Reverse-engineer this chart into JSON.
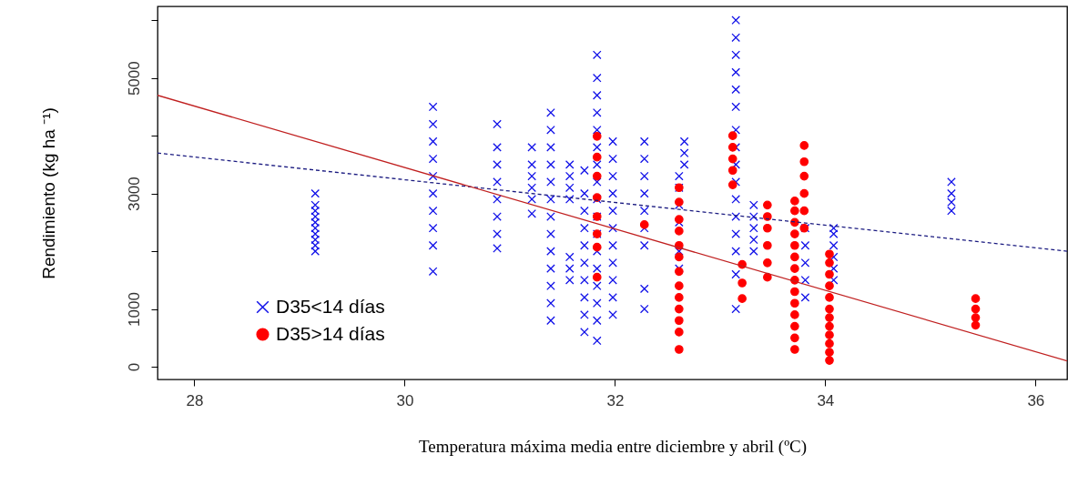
{
  "chart_data": {
    "type": "scatter",
    "xlabel": "Temperatura máxima media entre diciembre y abril (ºC)",
    "ylabel": "Rendimiento (kg ha ⁻¹)",
    "xlim": [
      27.65,
      36.3
    ],
    "xticks": [
      28,
      30,
      32,
      34,
      36
    ],
    "ylim": [
      -220,
      6240
    ],
    "yticks": [
      0,
      1000,
      {
        "value": 2000,
        "label": null
      },
      3000,
      {
        "value": 4000,
        "label": null
      },
      5000,
      {
        "value": 6000,
        "label": null
      }
    ],
    "grid": false,
    "legend": "bottom left",
    "series": [
      {
        "name": "D35<14 días",
        "marker": "cross",
        "color": "#1010e8",
        "x": [
          29.15,
          29.15,
          29.15,
          29.15,
          29.15,
          29.15,
          29.15,
          29.15,
          29.15,
          29.15,
          30.27,
          30.27,
          30.27,
          30.27,
          30.27,
          30.27,
          30.27,
          30.27,
          30.27,
          30.27,
          30.88,
          30.88,
          30.88,
          30.88,
          30.88,
          30.88,
          30.88,
          30.88,
          31.21,
          31.21,
          31.21,
          31.21,
          31.21,
          31.21,
          31.39,
          31.39,
          31.39,
          31.39,
          31.39,
          31.39,
          31.39,
          31.39,
          31.39,
          31.39,
          31.39,
          31.39,
          31.39,
          31.57,
          31.57,
          31.57,
          31.57,
          31.57,
          31.57,
          31.57,
          31.71,
          31.71,
          31.71,
          31.71,
          31.71,
          31.71,
          31.71,
          31.71,
          31.71,
          31.71,
          31.83,
          31.83,
          31.83,
          31.83,
          31.83,
          31.83,
          31.83,
          31.83,
          31.83,
          31.83,
          31.83,
          31.83,
          31.83,
          31.83,
          31.83,
          31.83,
          31.83,
          31.98,
          31.98,
          31.98,
          31.98,
          31.98,
          31.98,
          31.98,
          31.98,
          31.98,
          31.98,
          31.98,
          32.28,
          32.28,
          32.28,
          32.28,
          32.28,
          32.28,
          32.28,
          32.28,
          32.28,
          32.61,
          32.61,
          32.61,
          32.61,
          32.61,
          32.61,
          32.66,
          32.66,
          32.66,
          33.15,
          33.15,
          33.15,
          33.15,
          33.15,
          33.15,
          33.15,
          33.15,
          33.15,
          33.15,
          33.15,
          33.15,
          33.15,
          33.15,
          33.15,
          33.15,
          33.32,
          33.32,
          33.32,
          33.32,
          33.32,
          33.81,
          33.81,
          33.81,
          33.81,
          33.81,
          34.08,
          34.08,
          34.08,
          34.08,
          34.08,
          34.08,
          35.2,
          35.2,
          35.2,
          35.2
        ],
        "values": [
          2000,
          2100,
          2200,
          2300,
          2400,
          2500,
          2600,
          2700,
          2800,
          3000,
          1650,
          2100,
          2400,
          2700,
          3000,
          3300,
          3600,
          3900,
          4200,
          4500,
          2050,
          2300,
          2600,
          2900,
          3200,
          3500,
          3800,
          4200,
          2650,
          2900,
          3100,
          3300,
          3500,
          3800,
          800,
          1100,
          1400,
          1700,
          2000,
          2300,
          2600,
          2900,
          3200,
          3500,
          3800,
          4100,
          4400,
          1500,
          1700,
          1900,
          2900,
          3100,
          3300,
          3500,
          600,
          900,
          1200,
          1500,
          1800,
          2100,
          2400,
          2700,
          3000,
          3400,
          450,
          800,
          1100,
          1400,
          1700,
          2000,
          2300,
          2600,
          2900,
          3200,
          3500,
          3800,
          4100,
          4400,
          4700,
          5000,
          5400,
          900,
          1200,
          1500,
          1800,
          2100,
          2400,
          2700,
          3000,
          3300,
          3600,
          3900,
          1000,
          1350,
          2100,
          2400,
          2700,
          3000,
          3300,
          3600,
          3900,
          1700,
          2000,
          2500,
          2800,
          3100,
          3300,
          3500,
          3700,
          3900,
          1000,
          1600,
          2000,
          2300,
          2600,
          2900,
          3200,
          3500,
          3800,
          4100,
          4500,
          4800,
          5100,
          5400,
          5700,
          6000,
          2000,
          2200,
          2400,
          2600,
          2800,
          1200,
          1500,
          1800,
          2100,
          2400,
          1500,
          1700,
          1900,
          2100,
          2300,
          2400,
          2700,
          2850,
          3000,
          3200
        ]
      },
      {
        "name": "D35>14 días",
        "marker": "circle",
        "color": "#ff0000",
        "x": [
          31.83,
          31.83,
          31.83,
          31.83,
          31.83,
          31.83,
          31.83,
          31.83,
          32.28,
          32.61,
          32.61,
          32.61,
          32.61,
          32.61,
          32.61,
          32.61,
          32.61,
          32.61,
          32.61,
          32.61,
          32.61,
          32.61,
          33.12,
          33.12,
          33.12,
          33.12,
          33.12,
          33.21,
          33.21,
          33.21,
          33.45,
          33.45,
          33.45,
          33.45,
          33.45,
          33.45,
          33.71,
          33.71,
          33.71,
          33.71,
          33.71,
          33.71,
          33.71,
          33.71,
          33.71,
          33.71,
          33.71,
          33.71,
          33.71,
          33.71,
          33.8,
          33.8,
          33.8,
          33.8,
          33.8,
          33.8,
          34.04,
          34.04,
          34.04,
          34.04,
          34.04,
          34.04,
          34.04,
          34.04,
          34.04,
          34.04,
          34.04,
          34.04,
          35.43,
          35.43,
          35.43,
          35.43
        ],
        "values": [
          1550,
          2070,
          2300,
          2600,
          2930,
          3300,
          3630,
          3990,
          2460,
          300,
          600,
          800,
          1000,
          1200,
          1400,
          1650,
          1900,
          2100,
          2350,
          2550,
          2850,
          3100,
          3150,
          3400,
          3600,
          3800,
          4000,
          1180,
          1450,
          1770,
          1550,
          1800,
          2100,
          2400,
          2600,
          2800,
          300,
          500,
          700,
          900,
          1100,
          1300,
          1500,
          1700,
          1900,
          2100,
          2300,
          2500,
          2700,
          2870,
          2400,
          2700,
          3000,
          3300,
          3550,
          3830,
          110,
          250,
          400,
          550,
          700,
          850,
          1000,
          1200,
          1400,
          1600,
          1800,
          1950,
          720,
          850,
          1000,
          1180
        ]
      },
      {
        "type": "line",
        "line_style": "dashed",
        "color": "#1a1a80",
        "x": [
          27.65,
          36.3
        ],
        "values": [
          3700,
          2000
        ]
      },
      {
        "type": "line",
        "line_style": "solid",
        "color": "#c02020",
        "x": [
          27.65,
          36.3
        ],
        "values": [
          4700,
          100
        ]
      }
    ]
  }
}
